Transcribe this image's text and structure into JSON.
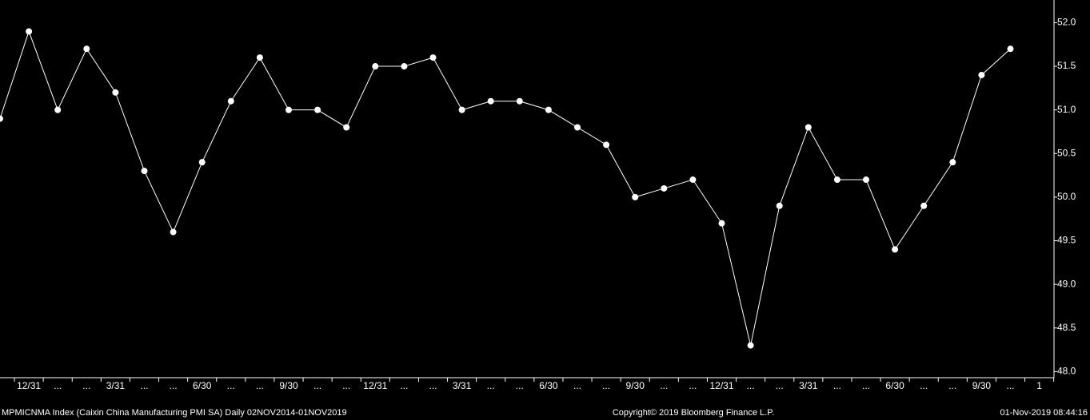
{
  "chart_data": {
    "type": "line",
    "categories": [
      null,
      "12/31",
      "...",
      "...",
      "3/31",
      "...",
      "...",
      "6/30",
      "...",
      "...",
      "9/30",
      "...",
      "...",
      "12/31",
      "...",
      "...",
      "3/31",
      "...",
      "...",
      "6/30",
      "...",
      "...",
      "9/30",
      "...",
      "...",
      "12/31",
      "...",
      "...",
      "3/31",
      "...",
      "...",
      "6/30",
      "...",
      "...",
      "9/30",
      "...",
      "1"
    ],
    "series": [
      {
        "name": "MPMICNMA Index",
        "color": "#ffffff",
        "values": [
          50.9,
          51.9,
          51.0,
          51.7,
          51.2,
          50.3,
          49.6,
          50.4,
          51.1,
          51.6,
          51.0,
          51.0,
          50.8,
          51.5,
          51.5,
          51.6,
          51.0,
          51.1,
          51.1,
          51.0,
          50.8,
          50.6,
          50.0,
          50.1,
          50.2,
          49.7,
          48.3,
          49.9,
          50.8,
          50.2,
          50.2,
          49.4,
          49.9,
          50.4,
          51.4,
          51.7,
          null
        ]
      }
    ],
    "ylim": [
      47.93,
      52.26
    ],
    "yticks": [
      {
        "value": 48,
        "label": "48.0"
      },
      {
        "value": 48.5,
        "label": "48.5"
      },
      {
        "value": 49,
        "label": "49.0"
      },
      {
        "value": 49.5,
        "label": "49.5"
      },
      {
        "value": 50,
        "label": "50.0"
      },
      {
        "value": 50.5,
        "label": "50.5"
      },
      {
        "value": 51,
        "label": "51.0"
      },
      {
        "value": 51.5,
        "label": "51.5"
      },
      {
        "value": 52,
        "label": "52.0"
      }
    ],
    "footer_left": "MPMICNMA Index (Caixin China Manufacturing PMI SA)  Daily 02NOV2014-01NOV2019",
    "footer_center": "Copyright© 2019 Bloomberg Finance L.P.",
    "footer_right": "01-Nov-2019 08:44:16"
  }
}
